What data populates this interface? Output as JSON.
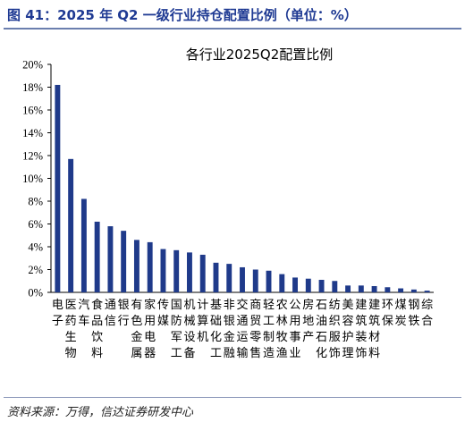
{
  "figure": {
    "title": "图 41：2025 年 Q2 一级行业持仓配置比例（单位：%）",
    "source": "资料来源：万得，信达证券研发中心"
  },
  "chart_data": {
    "type": "bar",
    "title": "各行业2025Q2配置比例",
    "xlabel": "",
    "ylabel": "",
    "ylim": [
      0,
      20
    ],
    "yticks": [
      "0%",
      "2%",
      "4%",
      "6%",
      "8%",
      "10%",
      "12%",
      "14%",
      "16%",
      "18%",
      "20%"
    ],
    "grid": false,
    "legend": "none",
    "bar_color": "#1f3a8a",
    "categories": [
      "电子",
      "医药生物",
      "汽车",
      "食品饮料",
      "通信",
      "银行",
      "有色金属",
      "家用电器",
      "传媒",
      "国防军工",
      "机械设备",
      "计算机",
      "基础化工",
      "非银金融",
      "交通运输",
      "商贸零售",
      "轻工制造",
      "农林牧渔",
      "公用事业",
      "房地产",
      "石油石化",
      "纺织服饰",
      "美容护理",
      "建筑装饰",
      "建筑材料",
      "环保",
      "煤炭",
      "钢铁",
      "综合"
    ],
    "values": [
      18.2,
      11.7,
      8.2,
      6.2,
      5.8,
      5.4,
      4.6,
      4.4,
      3.8,
      3.7,
      3.5,
      3.3,
      2.6,
      2.5,
      2.2,
      2.0,
      1.9,
      1.6,
      1.3,
      1.2,
      1.1,
      1.0,
      0.6,
      0.6,
      0.55,
      0.45,
      0.35,
      0.25,
      0.15
    ]
  }
}
